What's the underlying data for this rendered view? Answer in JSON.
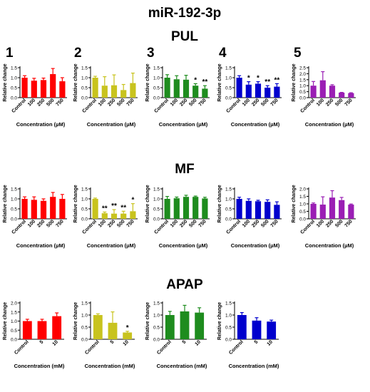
{
  "figure": {
    "title": "miR-192-3p",
    "sections": [
      "PUL",
      "MF",
      "APAP"
    ],
    "column_numbers": [
      "1",
      "2",
      "3",
      "4",
      "5"
    ],
    "colors": [
      "#ff0000",
      "#c8c31e",
      "#1e8c1e",
      "#0000cd",
      "#9a1eb4"
    ]
  },
  "chart_data": [
    {
      "id": "PUL-1",
      "type": "bar",
      "section": "PUL",
      "column": 1,
      "color": "#ff0000",
      "categories": [
        "Control",
        "100",
        "250",
        "500",
        "750"
      ],
      "values": [
        1.0,
        0.85,
        0.88,
        1.18,
        0.82
      ],
      "errors": [
        0.1,
        0.12,
        0.1,
        0.28,
        0.18
      ],
      "ylim": [
        0,
        1.5
      ],
      "yticks": [
        "0.0",
        "0.5",
        "1.0",
        "1.5"
      ],
      "xlabel": "Concentration (µM)",
      "ylabel": "Relative change",
      "stars": [
        "",
        "",
        "",
        "",
        ""
      ]
    },
    {
      "id": "PUL-2",
      "type": "bar",
      "section": "PUL",
      "column": 2,
      "color": "#c8c31e",
      "categories": [
        "Control",
        "100",
        "250",
        "500",
        "750"
      ],
      "values": [
        1.0,
        0.6,
        0.62,
        0.38,
        0.73
      ],
      "errors": [
        0.07,
        0.45,
        0.52,
        0.28,
        0.5
      ],
      "ylim": [
        0,
        1.5
      ],
      "yticks": [
        "0.0",
        "0.5",
        "1.0",
        "1.5"
      ],
      "xlabel": "Concentration (µM)",
      "ylabel": "Relative change",
      "stars": [
        "",
        "",
        "",
        "",
        ""
      ]
    },
    {
      "id": "PUL-3",
      "type": "bar",
      "section": "PUL",
      "column": 3,
      "color": "#1e8c1e",
      "categories": [
        "Control",
        "100",
        "250",
        "500",
        "750"
      ],
      "values": [
        1.0,
        0.92,
        0.9,
        0.6,
        0.45
      ],
      "errors": [
        0.15,
        0.18,
        0.22,
        0.1,
        0.15
      ],
      "ylim": [
        0,
        1.5
      ],
      "yticks": [
        "0.0",
        "0.5",
        "1.0",
        "1.5"
      ],
      "xlabel": "Concentration (µM)",
      "ylabel": "Relative change",
      "stars": [
        "",
        "",
        "",
        "*",
        "**"
      ]
    },
    {
      "id": "PUL-4",
      "type": "bar",
      "section": "PUL",
      "column": 4,
      "color": "#0000cd",
      "categories": [
        "Control",
        "100",
        "250",
        "500",
        "750"
      ],
      "values": [
        1.0,
        0.65,
        0.7,
        0.5,
        0.55
      ],
      "errors": [
        0.1,
        0.15,
        0.1,
        0.1,
        0.15
      ],
      "ylim": [
        0,
        1.5
      ],
      "yticks": [
        "0.0",
        "0.5",
        "1.0",
        "1.5"
      ],
      "xlabel": "Concentration (µM)",
      "ylabel": "Relative change",
      "stars": [
        "",
        "*",
        "*",
        "**",
        "**"
      ]
    },
    {
      "id": "PUL-5",
      "type": "bar",
      "section": "PUL",
      "column": 5,
      "color": "#9a1eb4",
      "categories": [
        "Control",
        "100",
        "250",
        "500",
        "750"
      ],
      "values": [
        1.0,
        1.45,
        1.0,
        0.42,
        0.38
      ],
      "errors": [
        0.35,
        0.72,
        0.08,
        0.02,
        0.03
      ],
      "ylim": [
        0,
        2.5
      ],
      "yticks": [
        "0.0",
        "0.5",
        "1.0",
        "1.5",
        "2.0",
        "2.5"
      ],
      "xlabel": "Concentration (µM)",
      "ylabel": "Relative change",
      "stars": [
        "",
        "",
        "",
        "",
        ""
      ]
    },
    {
      "id": "MF-1",
      "type": "bar",
      "section": "MF",
      "column": 1,
      "color": "#ff0000",
      "categories": [
        "Control",
        "100",
        "250",
        "500",
        "750"
      ],
      "values": [
        1.0,
        0.95,
        0.9,
        1.1,
        1.0
      ],
      "errors": [
        0.1,
        0.15,
        0.1,
        0.22,
        0.22
      ],
      "ylim": [
        0,
        1.5
      ],
      "yticks": [
        "0.0",
        "0.5",
        "1.0",
        "1.5"
      ],
      "xlabel": "Concentration (µM)",
      "ylabel": "Relative change",
      "stars": [
        "",
        "",
        "",
        "",
        ""
      ]
    },
    {
      "id": "MF-2",
      "type": "bar",
      "section": "MF",
      "column": 2,
      "color": "#c8c31e",
      "categories": [
        "Control",
        "100",
        "250",
        "500",
        "750"
      ],
      "values": [
        1.0,
        0.28,
        0.26,
        0.26,
        0.38
      ],
      "errors": [
        0.04,
        0.06,
        0.2,
        0.12,
        0.38
      ],
      "ylim": [
        0,
        1.5
      ],
      "yticks": [
        "0.0",
        "0.5",
        "1.0",
        "1.5"
      ],
      "xlabel": "Concentration (µM)",
      "ylabel": "Relative change",
      "stars": [
        "",
        "**",
        "**",
        "**",
        "*"
      ]
    },
    {
      "id": "MF-3",
      "type": "bar",
      "section": "MF",
      "column": 3,
      "color": "#1e8c1e",
      "categories": [
        "Control",
        "100",
        "250",
        "500",
        "750"
      ],
      "values": [
        1.0,
        1.03,
        1.1,
        1.1,
        1.02
      ],
      "errors": [
        0.12,
        0.06,
        0.08,
        0.04,
        0.06
      ],
      "ylim": [
        0,
        1.5
      ],
      "yticks": [
        "0.0",
        "0.5",
        "1.0",
        "1.5"
      ],
      "xlabel": "Concentration (µM)",
      "ylabel": "Relative change",
      "stars": [
        "",
        "",
        "",
        "",
        ""
      ]
    },
    {
      "id": "MF-4",
      "type": "bar",
      "section": "MF",
      "column": 4,
      "color": "#0000cd",
      "categories": [
        "Control",
        "100",
        "250",
        "500",
        "750"
      ],
      "values": [
        1.0,
        0.9,
        0.88,
        0.85,
        0.7
      ],
      "errors": [
        0.08,
        0.1,
        0.05,
        0.1,
        0.15
      ],
      "ylim": [
        0,
        1.5
      ],
      "yticks": [
        "0.0",
        "0.5",
        "1.0",
        "1.5"
      ],
      "xlabel": "Concentration (µM)",
      "ylabel": "Relative change",
      "stars": [
        "",
        "",
        "",
        "",
        ""
      ]
    },
    {
      "id": "MF-5",
      "type": "bar",
      "section": "MF",
      "column": 5,
      "color": "#9a1eb4",
      "categories": [
        "Control",
        "100",
        "250",
        "500",
        "750"
      ],
      "values": [
        1.0,
        0.95,
        1.42,
        1.25,
        0.95
      ],
      "errors": [
        0.06,
        0.52,
        0.46,
        0.18,
        0.04
      ],
      "ylim": [
        0,
        2.0
      ],
      "yticks": [
        "0.0",
        "0.5",
        "1.0",
        "1.5",
        "2.0"
      ],
      "xlabel": "Concentration (µM)",
      "ylabel": "Relative change",
      "stars": [
        "",
        "",
        "",
        "",
        ""
      ]
    },
    {
      "id": "APAP-1",
      "type": "bar",
      "section": "APAP",
      "column": 1,
      "color": "#ff0000",
      "categories": [
        "Control",
        "5",
        "10"
      ],
      "values": [
        1.0,
        1.0,
        1.27
      ],
      "errors": [
        0.1,
        0.1,
        0.18
      ],
      "ylim": [
        0,
        2.0
      ],
      "yticks": [
        "0.0",
        "0.5",
        "1.0",
        "1.5",
        "2.0"
      ],
      "xlabel": "Concentration (mM)",
      "ylabel": "Relative change",
      "stars": [
        "",
        "",
        ""
      ]
    },
    {
      "id": "APAP-2",
      "type": "bar",
      "section": "APAP",
      "column": 2,
      "color": "#c8c31e",
      "categories": [
        "Control",
        "5",
        "10"
      ],
      "values": [
        1.0,
        0.68,
        0.28
      ],
      "errors": [
        0.05,
        0.45,
        0.05
      ],
      "ylim": [
        0,
        1.5
      ],
      "yticks": [
        "0.0",
        "0.5",
        "1.0",
        "1.5"
      ],
      "xlabel": "Concentration (mM)",
      "ylabel": "Relative change",
      "stars": [
        "",
        "",
        "*"
      ]
    },
    {
      "id": "APAP-3",
      "type": "bar",
      "section": "APAP",
      "column": 3,
      "color": "#1e8c1e",
      "categories": [
        "Control",
        "5",
        "10"
      ],
      "values": [
        1.0,
        1.15,
        1.1
      ],
      "errors": [
        0.15,
        0.25,
        0.2
      ],
      "ylim": [
        0,
        1.5
      ],
      "yticks": [
        "0.0",
        "0.5",
        "1.0",
        "1.5"
      ],
      "xlabel": "Concentration (mM)",
      "ylabel": "Relative change",
      "stars": [
        "",
        "",
        ""
      ]
    },
    {
      "id": "APAP-4",
      "type": "bar",
      "section": "APAP",
      "column": 4,
      "color": "#0000cd",
      "categories": [
        "Control",
        "5",
        "10"
      ],
      "values": [
        1.0,
        0.77,
        0.73
      ],
      "errors": [
        0.1,
        0.12,
        0.06
      ],
      "ylim": [
        0,
        1.5
      ],
      "yticks": [
        "0.0",
        "0.5",
        "1.0",
        "1.5"
      ],
      "xlabel": "Concentration (mM)",
      "ylabel": "Relative change",
      "stars": [
        "",
        "",
        ""
      ]
    }
  ]
}
